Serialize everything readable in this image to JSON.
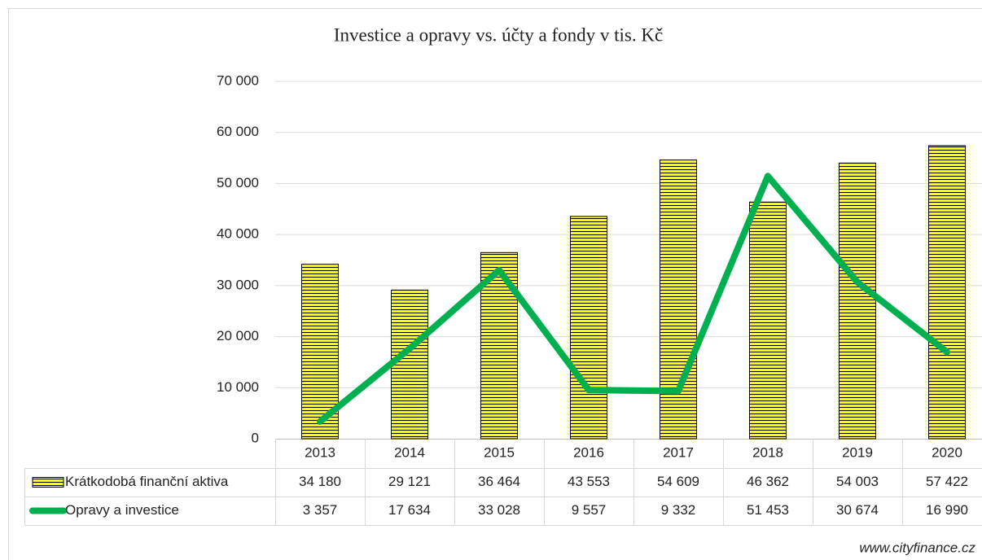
{
  "chart_data": {
    "type": "bar_line",
    "title": "Investice a opravy vs. účty a fondy v tis. Kč",
    "categories": [
      "2013",
      "2014",
      "2015",
      "2016",
      "2017",
      "2018",
      "2019",
      "2020"
    ],
    "series": [
      {
        "name": "Krátkodobá finanční aktiva",
        "type": "bar",
        "color": "#ffff00",
        "values": [
          34180,
          29121,
          36464,
          43553,
          54609,
          46362,
          54003,
          57422
        ],
        "value_labels": [
          "34 180",
          "29 121",
          "36 464",
          "43 553",
          "54 609",
          "46 362",
          "54 003",
          "57 422"
        ]
      },
      {
        "name": "Opravy a investice",
        "type": "line",
        "color": "#00b050",
        "values": [
          3357,
          17634,
          33028,
          9557,
          9332,
          51453,
          30674,
          16990
        ],
        "value_labels": [
          "3 357",
          "17 634",
          "33 028",
          "9 557",
          "9 332",
          "51 453",
          "30 674",
          "16 990"
        ]
      }
    ],
    "ylim": [
      0,
      70000
    ],
    "yticks": [
      0,
      {
        "value": 10000,
        "label": "10 000"
      },
      {
        "value": 20000,
        "label": "20 000"
      },
      {
        "value": 30000,
        "label": "30 000"
      },
      {
        "value": 40000,
        "label": "40 000"
      },
      {
        "value": 50000,
        "label": "50 000"
      },
      {
        "value": 60000,
        "label": "60 000"
      },
      {
        "value": 70000,
        "label": "70 000"
      }
    ],
    "grid": true,
    "source": "www.cityfinance.cz"
  }
}
